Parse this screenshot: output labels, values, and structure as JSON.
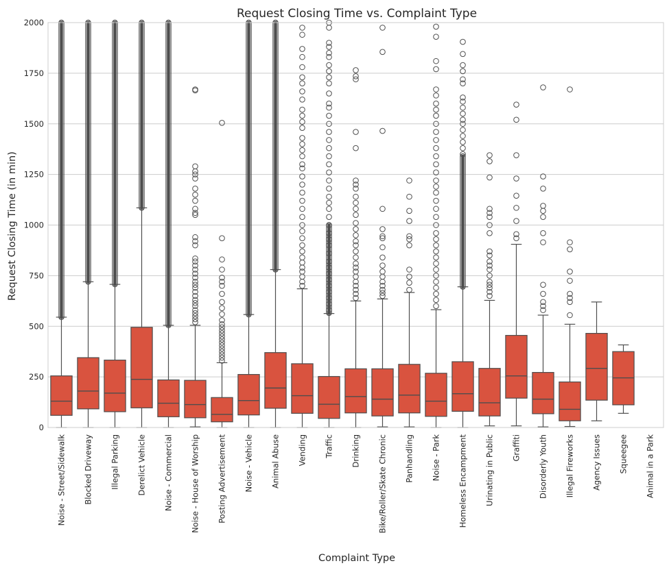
{
  "chart_data": {
    "type": "box",
    "title": "Request Closing Time vs. Complaint Type",
    "xlabel": "Complaint Type",
    "ylabel": "Request Closing Time (in min)",
    "ylim": [
      0,
      2000
    ],
    "yticks": [
      0,
      250,
      500,
      750,
      1000,
      1250,
      1500,
      1750,
      2000
    ],
    "grid": "horizontal",
    "box_color": "#d9533f",
    "line_color": "#4d4d4d",
    "grid_color": "#cccccc",
    "categories": [
      "Noise - Street/Sidewalk",
      "Blocked Driveway",
      "Illegal Parking",
      "Derelict Vehicle",
      "Noise - Commercial",
      "Noise - House of Worship",
      "Posting Advertisement",
      "Noise - Vehicle",
      "Animal Abuse",
      "Vending",
      "Traffic",
      "Drinking",
      "Bike/Roller/Skate Chronic",
      "Panhandling",
      "Noise - Park",
      "Homeless Encampment",
      "Urinating in Public",
      "Graffiti",
      "Disorderly Youth",
      "Illegal Fireworks",
      "Agency Issues",
      "Squeegee",
      "Animal in a Park"
    ],
    "boxes": [
      {
        "low": 0,
        "q1": 60,
        "median": 130,
        "q3": 255,
        "high": 545,
        "outliers": [],
        "dense_range": [
          545,
          2000
        ]
      },
      {
        "low": 0,
        "q1": 92,
        "median": 180,
        "q3": 345,
        "high": 720,
        "outliers": [],
        "dense_range": [
          720,
          2000
        ]
      },
      {
        "low": 0,
        "q1": 78,
        "median": 170,
        "q3": 333,
        "high": 707,
        "outliers": [],
        "dense_range": [
          707,
          2000
        ]
      },
      {
        "low": 0,
        "q1": 97,
        "median": 238,
        "q3": 495,
        "high": 1085,
        "outliers": [],
        "dense_range": [
          1085,
          2000
        ]
      },
      {
        "low": 0,
        "q1": 53,
        "median": 120,
        "q3": 235,
        "high": 505,
        "outliers": [],
        "dense_range": [
          505,
          2000
        ]
      },
      {
        "low": 3,
        "q1": 48,
        "median": 113,
        "q3": 233,
        "high": 505,
        "outliers": [
          520,
          535,
          550,
          565,
          580,
          600,
          615,
          630,
          650,
          670,
          690,
          705,
          720,
          740,
          760,
          780,
          800,
          820,
          835,
          900,
          920,
          940,
          1050,
          1060,
          1080,
          1120,
          1150,
          1180,
          1230,
          1250,
          1265,
          1290,
          1665,
          1670
        ],
        "dense_range": null
      },
      {
        "low": 0,
        "q1": 28,
        "median": 65,
        "q3": 148,
        "high": 320,
        "outliers": [
          330,
          345,
          360,
          375,
          390,
          405,
          420,
          435,
          450,
          465,
          480,
          495,
          510,
          530,
          560,
          590,
          620,
          660,
          700,
          720,
          740,
          780,
          830,
          935,
          1505
        ],
        "dense_range": null
      },
      {
        "low": 0,
        "q1": 62,
        "median": 133,
        "q3": 262,
        "high": 558,
        "outliers": [],
        "dense_range": [
          558,
          2000
        ]
      },
      {
        "low": 0,
        "q1": 95,
        "median": 195,
        "q3": 370,
        "high": 780,
        "outliers": [],
        "dense_range": [
          780,
          2000
        ]
      },
      {
        "low": 0,
        "q1": 70,
        "median": 157,
        "q3": 315,
        "high": 685,
        "outliers": [
          700,
          720,
          745,
          770,
          790,
          815,
          840,
          870,
          900,
          935,
          970,
          1000,
          1040,
          1080,
          1120,
          1160,
          1200,
          1240,
          1280,
          1300,
          1340,
          1370,
          1400,
          1430,
          1480,
          1510,
          1540,
          1570,
          1620,
          1660,
          1700,
          1730,
          1780,
          1830,
          1870,
          1940,
          1975
        ],
        "dense_range": null
      },
      {
        "low": 0,
        "q1": 45,
        "median": 115,
        "q3": 252,
        "high": 563,
        "outliers": [
          580,
          610,
          640,
          670,
          700,
          730,
          760,
          790,
          820,
          860,
          900,
          930,
          960,
          1000,
          1040,
          1080,
          1110,
          1140,
          1180,
          1220,
          1260,
          1300,
          1340,
          1380,
          1420,
          1460,
          1500,
          1540,
          1580,
          1600,
          1650,
          1700,
          1730,
          1760,
          1790,
          1830,
          1850,
          1880,
          1900,
          1975,
          2000
        ],
        "dense_range": [
          565,
          1000
        ]
      },
      {
        "low": 0,
        "q1": 72,
        "median": 153,
        "q3": 290,
        "high": 625,
        "outliers": [
          640,
          660,
          680,
          700,
          720,
          745,
          770,
          790,
          810,
          840,
          870,
          900,
          920,
          950,
          980,
          1010,
          1050,
          1080,
          1110,
          1140,
          1180,
          1200,
          1220,
          1380,
          1460,
          1720,
          1735,
          1765
        ],
        "dense_range": null
      },
      {
        "low": 3,
        "q1": 57,
        "median": 140,
        "q3": 290,
        "high": 635,
        "outliers": [
          650,
          665,
          680,
          700,
          720,
          745,
          770,
          800,
          840,
          890,
          935,
          945,
          980,
          1080,
          1465,
          1855,
          1975
        ],
        "dense_range": null
      },
      {
        "low": 3,
        "q1": 72,
        "median": 160,
        "q3": 312,
        "high": 667,
        "outliers": [
          680,
          715,
          745,
          780,
          900,
          930,
          945,
          1020,
          1070,
          1140,
          1220
        ],
        "dense_range": null
      },
      {
        "low": 0,
        "q1": 55,
        "median": 130,
        "q3": 268,
        "high": 582,
        "outliers": [
          600,
          630,
          660,
          690,
          720,
          750,
          780,
          810,
          840,
          870,
          900,
          930,
          960,
          1000,
          1040,
          1080,
          1120,
          1160,
          1190,
          1220,
          1260,
          1300,
          1340,
          1380,
          1420,
          1460,
          1500,
          1540,
          1570,
          1600,
          1640,
          1670,
          1770,
          1810,
          1930,
          1980
        ],
        "dense_range": null
      },
      {
        "low": 0,
        "q1": 80,
        "median": 167,
        "q3": 325,
        "high": 695,
        "outliers": [
          1350,
          1380,
          1410,
          1440,
          1470,
          1500,
          1520,
          1550,
          1580,
          1610,
          1630,
          1700,
          1720,
          1760,
          1790,
          1845,
          1905
        ],
        "dense_range": [
          695,
          1340
        ]
      },
      {
        "low": 8,
        "q1": 57,
        "median": 122,
        "q3": 292,
        "high": 628,
        "outliers": [
          650,
          670,
          690,
          705,
          720,
          750,
          780,
          800,
          820,
          850,
          870,
          960,
          1000,
          1040,
          1060,
          1080,
          1235,
          1315,
          1345
        ],
        "dense_range": null
      },
      {
        "low": 8,
        "q1": 145,
        "median": 255,
        "q3": 455,
        "high": 905,
        "outliers": [
          935,
          955,
          1020,
          1085,
          1145,
          1230,
          1345,
          1520,
          1595
        ],
        "dense_range": null
      },
      {
        "low": 3,
        "q1": 68,
        "median": 140,
        "q3": 272,
        "high": 555,
        "outliers": [
          580,
          600,
          620,
          660,
          705,
          915,
          960,
          1040,
          1070,
          1095,
          1180,
          1240,
          1680
        ],
        "dense_range": null
      },
      {
        "low": 5,
        "q1": 33,
        "median": 90,
        "q3": 225,
        "high": 510,
        "outliers": [
          555,
          620,
          640,
          660,
          725,
          770,
          880,
          915,
          1670
        ],
        "dense_range": null
      },
      {
        "low": 33,
        "q1": 135,
        "median": 292,
        "q3": 465,
        "high": 620,
        "outliers": [],
        "dense_range": null
      },
      {
        "low": 70,
        "q1": 112,
        "median": 245,
        "q3": 375,
        "high": 408,
        "outliers": [],
        "dense_range": null
      },
      null
    ]
  }
}
